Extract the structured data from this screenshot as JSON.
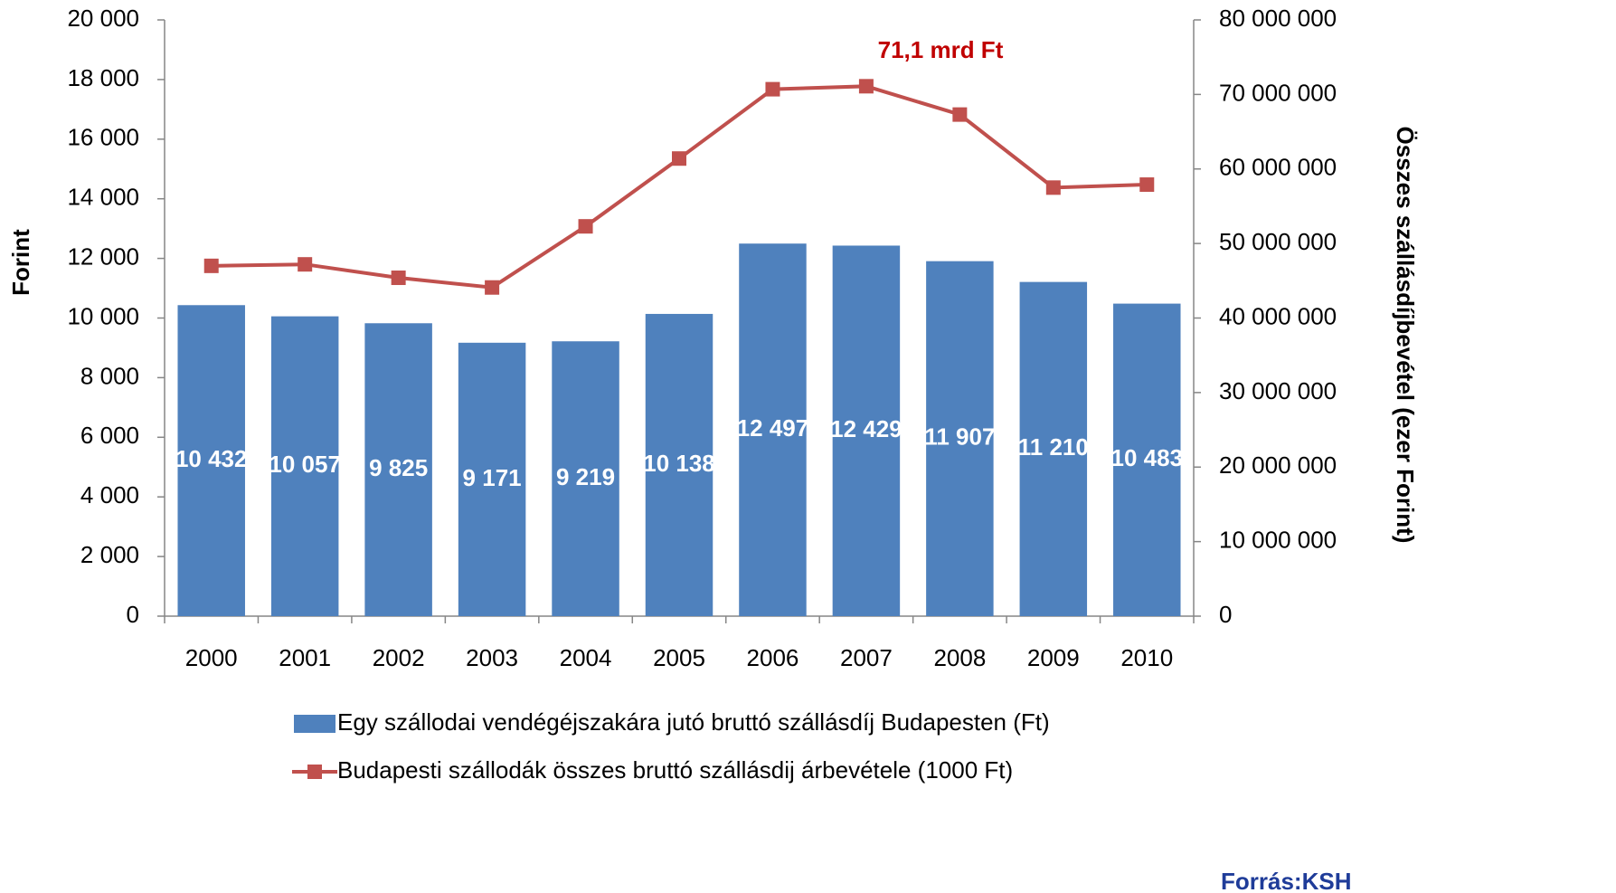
{
  "chart_data": {
    "type": "bar",
    "categories": [
      "2000",
      "2001",
      "2002",
      "2003",
      "2004",
      "2005",
      "2006",
      "2007",
      "2008",
      "2009",
      "2010"
    ],
    "series": [
      {
        "name": "Egy szállodai vendégéjszakára jutó bruttó szállásdíj Budapesten (Ft)",
        "type": "bar",
        "color": "#4f81bd",
        "values": [
          10432,
          10057,
          9825,
          9171,
          9219,
          10138,
          12497,
          12429,
          11907,
          11210,
          10483
        ],
        "value_labels": [
          "10 432",
          "10 057",
          "9 825",
          "9 171",
          "9 219",
          "10 138",
          "12 497",
          "12 429",
          "11 907",
          "11 210",
          "10 483"
        ]
      },
      {
        "name": "Budapesti szállodák összes bruttó szállásdij árbevétele (1000 Ft)",
        "type": "line",
        "color": "#c0504d",
        "axis": "y2",
        "values": [
          47000000,
          47200000,
          45400000,
          44100000,
          52300000,
          61400000,
          70700000,
          71100000,
          67300000,
          57500000,
          57900000
        ]
      }
    ],
    "ylabel": "Forint",
    "y2label": "Összes szállásdíjbevétel (ezer Forint)",
    "ylim": [
      0,
      20000
    ],
    "yticks": [
      0,
      {
        "value": 2000,
        "label": "2 000"
      },
      {
        "value": 4000,
        "label": "4 000"
      },
      {
        "value": 6000,
        "label": "6 000"
      },
      {
        "value": 8000,
        "label": "8 000"
      },
      {
        "value": 10000,
        "label": "10 000"
      },
      {
        "value": 12000,
        "label": "12 000"
      },
      {
        "value": 14000,
        "label": "14 000"
      },
      {
        "value": 16000,
        "label": "16 000"
      },
      {
        "value": 18000,
        "label": "18 000"
      },
      {
        "value": 20000,
        "label": "20 000"
      }
    ],
    "y2lim": [
      0,
      80000000
    ],
    "y2ticks": [
      0,
      {
        "value": 10000000,
        "label": "10 000 000"
      },
      {
        "value": 20000000,
        "label": "20 000 000"
      },
      {
        "value": 30000000,
        "label": "30 000 000"
      },
      {
        "value": 40000000,
        "label": "40 000 000"
      },
      {
        "value": 50000000,
        "label": "50 000 000"
      },
      {
        "value": 60000000,
        "label": "60 000 000"
      },
      {
        "value": 70000000,
        "label": "70 000 000"
      },
      {
        "value": 80000000,
        "label": "80 000 000"
      }
    ],
    "grid": false,
    "annotations": [
      "71,1 mrd Ft"
    ],
    "source": "Forrás:KSH"
  }
}
